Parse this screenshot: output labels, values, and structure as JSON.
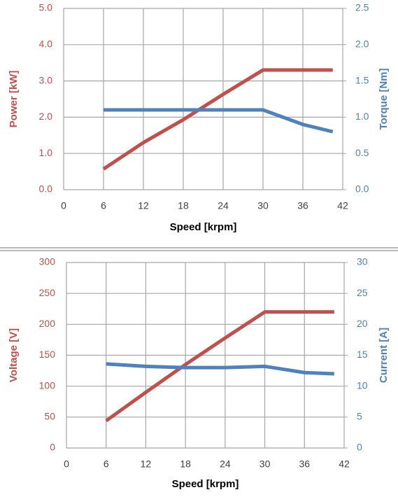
{
  "chart_data": [
    {
      "type": "line",
      "x": [
        6,
        12,
        18,
        24,
        30,
        36,
        40.5
      ],
      "series": [
        {
          "color": "#c0504d",
          "values": [
            0.57,
            1.3,
            1.93,
            2.63,
            3.3,
            3.3,
            3.3
          ]
        },
        {
          "color": "#4f81bd",
          "axis": "y2",
          "values": [
            1.1,
            1.1,
            1.1,
            1.1,
            1.1,
            0.9,
            0.8
          ]
        }
      ],
      "xlabel": "Speed [krpm]",
      "ylabel": "Power [kW]",
      "y2label": "Torque [Nm]",
      "xlim": [
        0,
        42
      ],
      "xticks": [
        0,
        6,
        12,
        18,
        24,
        30,
        36,
        42
      ],
      "ylim": [
        0,
        5
      ],
      "yticks": [
        {
          "value": 0,
          "label": "0.0"
        },
        {
          "value": 1,
          "label": "1.0"
        },
        {
          "value": 2,
          "label": "2.0"
        },
        {
          "value": 3,
          "label": "3.0"
        },
        {
          "value": 4,
          "label": "4.0"
        },
        {
          "value": 5,
          "label": "5.0"
        }
      ],
      "y2lim": [
        0,
        2.5
      ],
      "y2ticks": [
        {
          "value": 0,
          "label": "0.0"
        },
        0.5,
        {
          "value": 1,
          "label": "1.0"
        },
        1.5,
        {
          "value": 2,
          "label": "2.0"
        },
        2.5
      ],
      "grid": true
    },
    {
      "type": "line",
      "x": [
        6,
        12,
        18,
        24,
        30,
        36,
        40.5
      ],
      "series": [
        {
          "color": "#c0504d",
          "values": [
            44,
            90,
            135,
            178,
            220,
            220,
            220
          ]
        },
        {
          "color": "#4f81bd",
          "axis": "y2",
          "values": [
            13.6,
            13.2,
            13.0,
            13.0,
            13.2,
            12.2,
            12.0
          ]
        }
      ],
      "xlabel": "Speed [krpm]",
      "ylabel": "Voltage [V]",
      "y2label": "Current [A]",
      "xlim": [
        0,
        42
      ],
      "xticks": [
        0,
        6,
        12,
        18,
        24,
        30,
        36,
        42
      ],
      "ylim": [
        0,
        300
      ],
      "yticks": [
        0,
        50,
        100,
        150,
        200,
        250,
        300
      ],
      "y2lim": [
        0,
        30
      ],
      "y2ticks": [
        0,
        5,
        10,
        15,
        20,
        25,
        30
      ],
      "grid": true
    }
  ]
}
